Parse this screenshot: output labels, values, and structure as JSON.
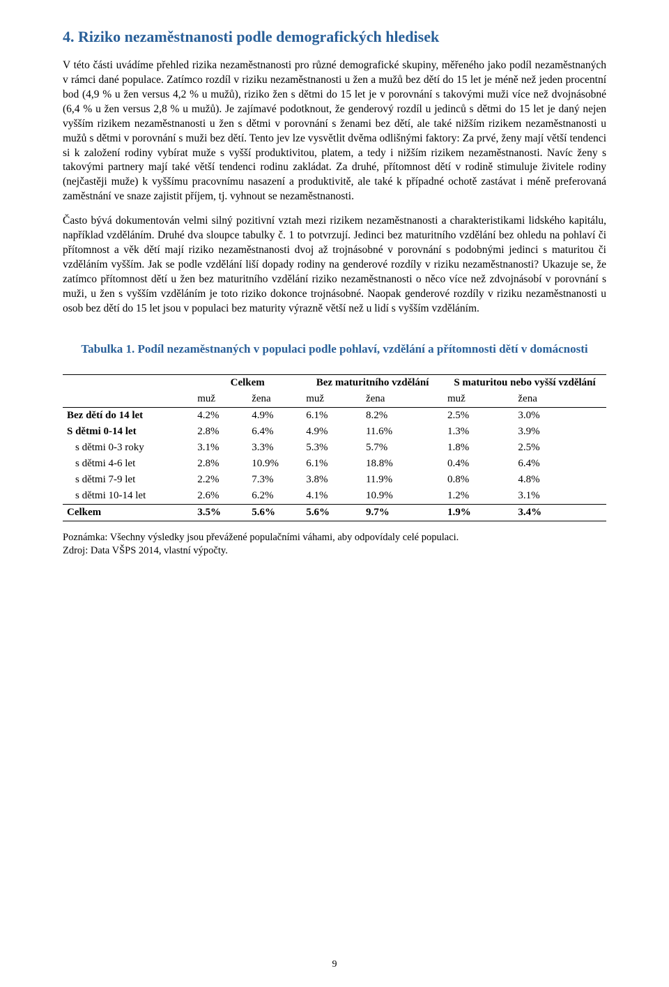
{
  "heading": "4. Riziko nezaměstnanosti podle demografických hledisek",
  "paragraphs": [
    "V této části uvádíme přehled rizika nezaměstnanosti pro různé demografické skupiny, měřeného jako podíl nezaměstnaných v rámci dané populace. Zatímco rozdíl v riziku nezaměstnanosti u žen a mužů bez dětí do 15 let je méně než jeden procentní bod (4,9 % u žen versus 4,2 % u mužů), riziko žen s dětmi do 15 let je v porovnání s takovými muži více než dvojnásobné (6,4 % u žen versus 2,8 % u mužů). Je zajímavé podotknout, že genderový rozdíl u jedinců s dětmi do 15 let je daný nejen vyšším rizikem nezaměstnanosti u žen s dětmi v porovnání s ženami bez dětí, ale také nižším rizikem nezaměstnanosti u mužů s dětmi v porovnání s muži bez dětí. Tento jev lze vysvětlit dvěma odlišnými faktory: Za prvé, ženy mají větší tendenci si k založení rodiny vybírat muže s vyšší produktivitou, platem, a tedy i nižším rizikem nezaměstnanosti. Navíc ženy s takovými partnery mají také větší tendenci rodinu zakládat. Za druhé, přítomnost dětí v rodině stimuluje živitele rodiny (nejčastěji muže) k vyššímu pracovnímu nasazení a produktivitě, ale také k případné ochotě zastávat i méně preferovaná zaměstnání ve snaze zajistit příjem, tj. vyhnout se nezaměstnanosti.",
    "Často bývá dokumentován velmi silný pozitivní vztah mezi rizikem nezaměstnanosti a charakteristikami lidského kapitálu, například vzděláním. Druhé dva sloupce tabulky č. 1 to potvrzují. Jedinci bez maturitního vzdělání bez ohledu na pohlaví či přítomnost a věk dětí mají riziko nezaměstnanosti dvoj až trojnásobné v porovnání s podobnými jedinci s maturitou či vzděláním vyšším. Jak se podle vzdělání liší dopady rodiny na genderové rozdíly v riziku nezaměstnanosti? Ukazuje se, že zatímco přítomnost dětí u žen bez maturitního vzdělání riziko nezaměstnanosti o něco více než zdvojnásobí v porovnání s muži, u žen s vyšším vzděláním je toto riziko dokonce trojnásobné. Naopak genderové rozdíly v riziku nezaměstnanosti u osob bez dětí do 15 let jsou v populaci bez maturity výrazně větší než u lidí s vyšším vzděláním."
  ],
  "table": {
    "title": "Tabulka 1. Podíl nezaměstnaných v populaci podle pohlaví, vzdělání a přítomnosti dětí v domácnosti",
    "group_headers": [
      "",
      "Celkem",
      "Bez maturitního vzdělání",
      "S maturitou nebo vyšší vzdělání"
    ],
    "sub_headers": [
      "",
      "muž",
      "žena",
      "muž",
      "žena",
      "muž",
      "žena"
    ],
    "rows": [
      {
        "label": "Bez dětí do 14 let",
        "indent": false,
        "cells": [
          "4.2%",
          "4.9%",
          "6.1%",
          "8.2%",
          "2.5%",
          "3.0%"
        ]
      },
      {
        "label": "S dětmi 0-14 let",
        "indent": false,
        "cells": [
          "2.8%",
          "6.4%",
          "4.9%",
          "11.6%",
          "1.3%",
          "3.9%"
        ]
      },
      {
        "label": "s dětmi 0-3 roky",
        "indent": true,
        "cells": [
          "3.1%",
          "3.3%",
          "5.3%",
          "5.7%",
          "1.8%",
          "2.5%"
        ]
      },
      {
        "label": "s dětmi 4-6 let",
        "indent": true,
        "cells": [
          "2.8%",
          "10.9%",
          "6.1%",
          "18.8%",
          "0.4%",
          "6.4%"
        ]
      },
      {
        "label": "s dětmi 7-9 let",
        "indent": true,
        "cells": [
          "2.2%",
          "7.3%",
          "3.8%",
          "11.9%",
          "0.8%",
          "4.8%"
        ]
      },
      {
        "label": "s dětmi 10-14 let",
        "indent": true,
        "cells": [
          "2.6%",
          "6.2%",
          "4.1%",
          "10.9%",
          "1.2%",
          "3.1%"
        ]
      }
    ],
    "total": {
      "label": "Celkem",
      "cells": [
        "3.5%",
        "5.6%",
        "5.6%",
        "9.7%",
        "1.9%",
        "3.4%"
      ]
    },
    "col_widths": [
      "24%",
      "10%",
      "10%",
      "11%",
      "15%",
      "13%",
      "17%"
    ]
  },
  "notes": [
    "Poznámka: Všechny výsledky jsou převážené populačními váhami, aby odpovídaly celé populaci.",
    "Zdroj: Data VŠPS 2014, vlastní výpočty."
  ],
  "page_number": "9",
  "colors": {
    "heading": "#2a6099",
    "text": "#000000",
    "background": "#ffffff"
  }
}
